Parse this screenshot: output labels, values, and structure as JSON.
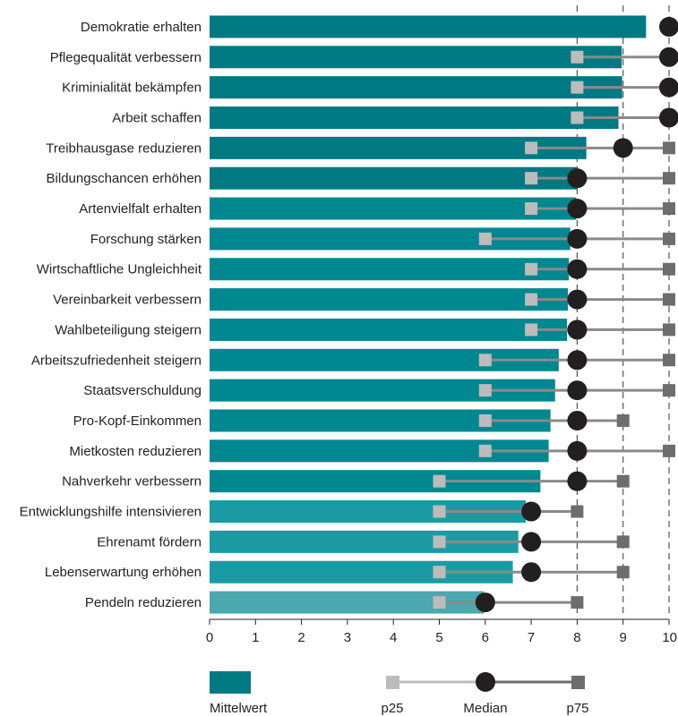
{
  "chart_data": {
    "type": "bar",
    "xlim": [
      0,
      10
    ],
    "x_ticks": [
      "0",
      "1",
      "2",
      "3",
      "4",
      "5",
      "6",
      "7",
      "8",
      "9",
      "10"
    ],
    "grid": "vertical dashed at 8, 9, 10",
    "categories": [
      "Demokratie erhalten",
      "Pflegequalität verbessern",
      "Kriminialität bekämpfen",
      "Arbeit schaffen",
      "Treibhausgase reduzieren",
      "Bildungschancen erhöhen",
      "Artenvielfalt erhalten",
      "Forschung stärken",
      "Wirtschaftliche Ungleichheit",
      "Vereinbarkeit verbessern",
      "Wahlbeteiligung steigern",
      "Arbeitszufriedenheit steigern",
      "Staatsverschuldung",
      "Pro-Kopf-Einkommen",
      "Mietkosten reduzieren",
      "Nahverkehr verbessern",
      "Entwicklungshilfe intensivieren",
      "Ehrenamt fördern",
      "Lebenserwartung erhöhen",
      "Pendeln reduzieren"
    ],
    "series": [
      {
        "name": "Mittelwert",
        "values": [
          9.5,
          8.97,
          8.98,
          8.9,
          8.2,
          8.0,
          7.98,
          7.85,
          7.82,
          7.8,
          7.78,
          7.6,
          7.52,
          7.42,
          7.38,
          7.2,
          6.88,
          6.72,
          6.6,
          5.97
        ]
      },
      {
        "name": "p25",
        "values": [
          null,
          8,
          8,
          8,
          7,
          7,
          7,
          6,
          7,
          7,
          7,
          6,
          6,
          6,
          6,
          5,
          5,
          5,
          5,
          5
        ]
      },
      {
        "name": "Median",
        "values": [
          10,
          10,
          10,
          10,
          9,
          8,
          8,
          8,
          8,
          8,
          8,
          8,
          8,
          8,
          8,
          8,
          7,
          7,
          7,
          6
        ]
      },
      {
        "name": "p75",
        "values": [
          null,
          10,
          10,
          10,
          10,
          10,
          10,
          10,
          10,
          10,
          10,
          10,
          10,
          9,
          10,
          9,
          8,
          9,
          9,
          8
        ]
      }
    ],
    "bar_colors": [
      "#007a82",
      "#007a82",
      "#007a82",
      "#007a82",
      "#007a82",
      "#007a82",
      "#008890",
      "#008890",
      "#008890",
      "#008890",
      "#008890",
      "#008890",
      "#008890",
      "#008890",
      "#008890",
      "#008890",
      "#1a9ba3",
      "#1a9ba3",
      "#1a9ba3",
      "#4aa8ae"
    ],
    "colors": {
      "median": "#231f20",
      "p25": "#bcbcbc",
      "p75": "#6d6d6d",
      "line": "#8a8a8a",
      "legend_bar": "#007a82"
    },
    "legend": {
      "items": [
        "Mittelwert",
        "p25",
        "Median",
        "p75"
      ],
      "placement": "bottom"
    }
  }
}
